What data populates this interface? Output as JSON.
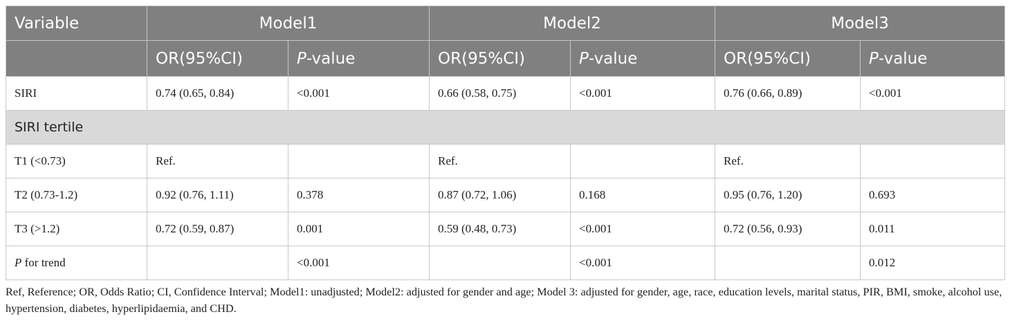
{
  "table": {
    "header": {
      "variable": "Variable",
      "models": [
        "Model1",
        "Model2",
        "Model3"
      ],
      "sub": [
        {
          "text": "OR(95%CI)"
        },
        {
          "italic": "P",
          "rest": "-value"
        },
        {
          "text": "OR(95%CI)"
        },
        {
          "italic": "P",
          "rest": "-value"
        },
        {
          "text": "OR(95%CI)"
        },
        {
          "italic": "P",
          "rest": "-value"
        }
      ]
    },
    "rows": [
      {
        "label": {
          "text": "SIRI"
        },
        "cells": [
          "0.74 (0.65, 0.84)",
          "<0.001",
          "0.66 (0.58, 0.75)",
          "<0.001",
          "0.76 (0.66, 0.89)",
          "<0.001"
        ]
      },
      {
        "section": "SIRI tertile"
      },
      {
        "label": {
          "text": "T1 (<0.73)"
        },
        "cells": [
          "Ref.",
          null,
          "Ref.",
          null,
          "Ref.",
          null
        ]
      },
      {
        "label": {
          "text": "T2 (0.73-1.2)"
        },
        "cells": [
          "0.92 (0.76, 1.11)",
          "0.378",
          "0.87 (0.72, 1.06)",
          "0.168",
          "0.95 (0.76, 1.20)",
          "0.693"
        ]
      },
      {
        "label": {
          "text": "T3 (>1.2)"
        },
        "cells": [
          "0.72 (0.59, 0.87)",
          "0.001",
          "0.59 (0.48, 0.73)",
          "<0.001",
          "0.72 (0.56, 0.93)",
          "0.011"
        ]
      },
      {
        "label": {
          "italic": "P",
          "rest": " for trend"
        },
        "cells": [
          null,
          "<0.001",
          null,
          "<0.001",
          null,
          "0.012"
        ]
      }
    ],
    "footnote": "Ref, Reference; OR, Odds Ratio; CI, Confidence Interval; Model1: unadjusted; Model2: adjusted for gender and age; Model 3: adjusted for gender, age, race, education levels, marital status, PIR, BMI, smoke, alcohol use, hypertension, diabetes, hyperlipidaemia, and CHD."
  }
}
